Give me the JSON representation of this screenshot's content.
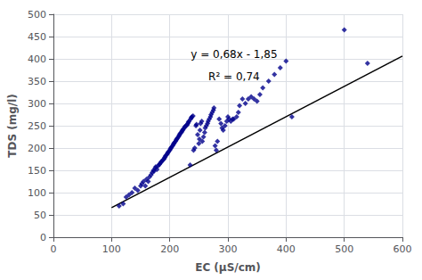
{
  "chart_data": {
    "type": "scatter",
    "xlabel": "EC (μS/cm)",
    "ylabel": "TDS (mg/l)",
    "xlim": [
      0,
      600
    ],
    "ylim": [
      0,
      500
    ],
    "xticks": [
      0,
      100,
      200,
      300,
      400,
      500,
      600
    ],
    "yticks": [
      0,
      50,
      100,
      150,
      200,
      250,
      300,
      350,
      400,
      450,
      500
    ],
    "grid": true,
    "annotations": [
      "y = 0,68x - 1,85",
      "R² = 0,74"
    ],
    "series": [
      {
        "type": "scatter",
        "color": "#00008B",
        "marker": "diamond",
        "x": [
          113,
          120,
          125,
          130,
          135,
          140,
          145,
          150,
          152,
          155,
          158,
          160,
          163,
          165,
          168,
          170,
          172,
          173,
          175,
          176,
          178,
          180,
          182,
          183,
          185,
          186,
          188,
          190,
          191,
          192,
          193,
          195,
          196,
          197,
          198,
          200,
          201,
          202,
          203,
          205,
          206,
          207,
          208,
          210,
          211,
          212,
          213,
          215,
          216,
          217,
          218,
          220,
          221,
          222,
          223,
          225,
          226,
          228,
          230,
          231,
          232,
          233,
          235,
          236,
          237,
          238,
          240,
          241,
          243,
          245,
          246,
          248,
          250,
          251,
          252,
          253,
          255,
          256,
          258,
          260,
          261,
          263,
          265,
          266,
          268,
          270,
          271,
          273,
          275,
          276,
          278,
          280,
          282,
          285,
          288,
          290,
          292,
          295,
          298,
          300,
          302,
          305,
          308,
          310,
          315,
          318,
          320,
          325,
          330,
          335,
          340,
          345,
          350,
          355,
          360,
          370,
          380,
          390,
          400,
          410,
          500,
          540
        ],
        "values": [
          70,
          75,
          90,
          95,
          100,
          110,
          105,
          115,
          120,
          125,
          115,
          130,
          125,
          135,
          140,
          145,
          150,
          148,
          155,
          158,
          152,
          160,
          163,
          165,
          168,
          170,
          173,
          175,
          178,
          180,
          183,
          185,
          188,
          190,
          192,
          195,
          198,
          200,
          202,
          205,
          208,
          210,
          212,
          215,
          218,
          220,
          222,
          225,
          228,
          230,
          233,
          235,
          238,
          240,
          242,
          245,
          248,
          250,
          252,
          255,
          258,
          260,
          162,
          265,
          268,
          270,
          272,
          195,
          200,
          250,
          253,
          230,
          210,
          220,
          240,
          255,
          260,
          215,
          225,
          235,
          245,
          250,
          255,
          260,
          265,
          270,
          275,
          280,
          285,
          290,
          205,
          195,
          215,
          265,
          255,
          245,
          240,
          250,
          260,
          270,
          265,
          260,
          265,
          265,
          270,
          280,
          295,
          310,
          300,
          310,
          315,
          310,
          305,
          320,
          335,
          350,
          365,
          380,
          395,
          270,
          465,
          390
        ]
      },
      {
        "type": "line",
        "color": "#000000",
        "line_style": "solid",
        "x": [
          100,
          600
        ],
        "values": [
          66.15,
          406.15
        ]
      }
    ]
  }
}
